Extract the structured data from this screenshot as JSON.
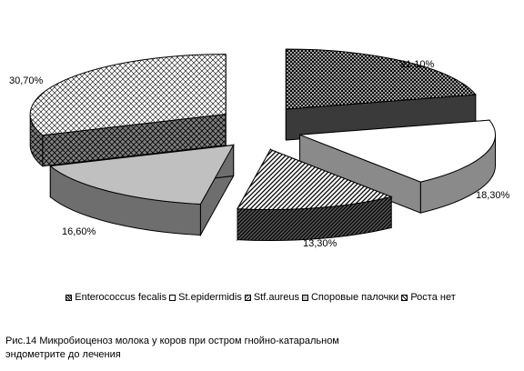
{
  "chart_data": {
    "type": "pie",
    "title": "",
    "categories": [
      "Enterococcus fecalis",
      "St.epidermidis",
      "Stf.aureus",
      "Споровые палочки",
      "Роста нет"
    ],
    "values": [
      21.1,
      18.3,
      13.3,
      16.6,
      30.7
    ],
    "data_labels": [
      "21,10%",
      "18,30%",
      "13,30%",
      "16,60%",
      "30,70%"
    ],
    "legend_position": "bottom",
    "exploded": true,
    "three_d": true,
    "colors": [
      "#000000",
      "#ffffff",
      "#ffffff",
      "#c0c0c0",
      "#ffffff"
    ],
    "side_colors": [
      "#333333",
      "#808080",
      "#333333",
      "#666666",
      "#808080"
    ]
  },
  "caption_lines": [
    "Рис.14 Микробиоценоз молока у коров при остром гнойно-катаральном",
    "эндометрите до лечения"
  ]
}
